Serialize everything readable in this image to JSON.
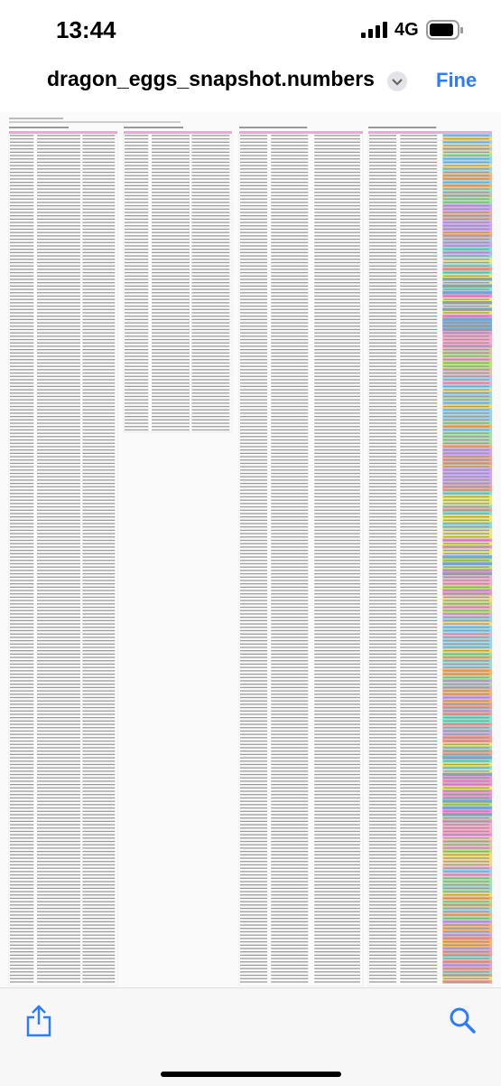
{
  "status_bar": {
    "time": "13:44",
    "network": "4G"
  },
  "nav_bar": {
    "title": "dragon_eggs_snapshot.numbers",
    "done_button": "Fine"
  }
}
